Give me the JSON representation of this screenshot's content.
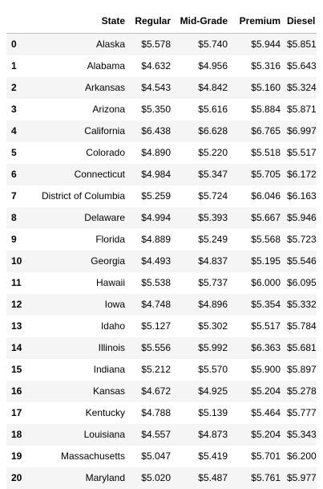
{
  "table": {
    "columns": [
      "State",
      "Regular",
      "Mid-Grade",
      "Premium",
      "Diesel"
    ],
    "rows": [
      {
        "index": "0",
        "state": "Alaska",
        "regular": "$5.578",
        "mid": "$5.740",
        "premium": "$5.944",
        "diesel": "$5.851"
      },
      {
        "index": "1",
        "state": "Alabama",
        "regular": "$4.632",
        "mid": "$4.956",
        "premium": "$5.316",
        "diesel": "$5.643"
      },
      {
        "index": "2",
        "state": "Arkansas",
        "regular": "$4.543",
        "mid": "$4.842",
        "premium": "$5.160",
        "diesel": "$5.324"
      },
      {
        "index": "3",
        "state": "Arizona",
        "regular": "$5.350",
        "mid": "$5.616",
        "premium": "$5.884",
        "diesel": "$5.871"
      },
      {
        "index": "4",
        "state": "California",
        "regular": "$6.438",
        "mid": "$6.628",
        "premium": "$6.765",
        "diesel": "$6.997"
      },
      {
        "index": "5",
        "state": "Colorado",
        "regular": "$4.890",
        "mid": "$5.220",
        "premium": "$5.518",
        "diesel": "$5.517"
      },
      {
        "index": "6",
        "state": "Connecticut",
        "regular": "$4.984",
        "mid": "$5.347",
        "premium": "$5.705",
        "diesel": "$6.172"
      },
      {
        "index": "7",
        "state": "District of Columbia",
        "regular": "$5.259",
        "mid": "$5.724",
        "premium": "$6.046",
        "diesel": "$6.163"
      },
      {
        "index": "8",
        "state": "Delaware",
        "regular": "$4.994",
        "mid": "$5.393",
        "premium": "$5.667",
        "diesel": "$5.946"
      },
      {
        "index": "9",
        "state": "Florida",
        "regular": "$4.889",
        "mid": "$5.249",
        "premium": "$5.568",
        "diesel": "$5.723"
      },
      {
        "index": "10",
        "state": "Georgia",
        "regular": "$4.493",
        "mid": "$4.837",
        "premium": "$5.195",
        "diesel": "$5.546"
      },
      {
        "index": "11",
        "state": "Hawaii",
        "regular": "$5.538",
        "mid": "$5.737",
        "premium": "$6.000",
        "diesel": "$6.095"
      },
      {
        "index": "12",
        "state": "Iowa",
        "regular": "$4.748",
        "mid": "$4.896",
        "premium": "$5.354",
        "diesel": "$5.332"
      },
      {
        "index": "13",
        "state": "Idaho",
        "regular": "$5.127",
        "mid": "$5.302",
        "premium": "$5.517",
        "diesel": "$5.784"
      },
      {
        "index": "14",
        "state": "Illinois",
        "regular": "$5.556",
        "mid": "$5.992",
        "premium": "$6.363",
        "diesel": "$5.681"
      },
      {
        "index": "15",
        "state": "Indiana",
        "regular": "$5.212",
        "mid": "$5.570",
        "premium": "$5.900",
        "diesel": "$5.897"
      },
      {
        "index": "16",
        "state": "Kansas",
        "regular": "$4.672",
        "mid": "$4.925",
        "premium": "$5.204",
        "diesel": "$5.278"
      },
      {
        "index": "17",
        "state": "Kentucky",
        "regular": "$4.788",
        "mid": "$5.139",
        "premium": "$5.464",
        "diesel": "$5.777"
      },
      {
        "index": "18",
        "state": "Louisiana",
        "regular": "$4.557",
        "mid": "$4.873",
        "premium": "$5.204",
        "diesel": "$5.343"
      },
      {
        "index": "19",
        "state": "Massachusetts",
        "regular": "$5.047",
        "mid": "$5.419",
        "premium": "$5.701",
        "diesel": "$6.200"
      },
      {
        "index": "20",
        "state": "Maryland",
        "regular": "$5.020",
        "mid": "$5.487",
        "premium": "$5.761",
        "diesel": "$5.977"
      }
    ]
  }
}
